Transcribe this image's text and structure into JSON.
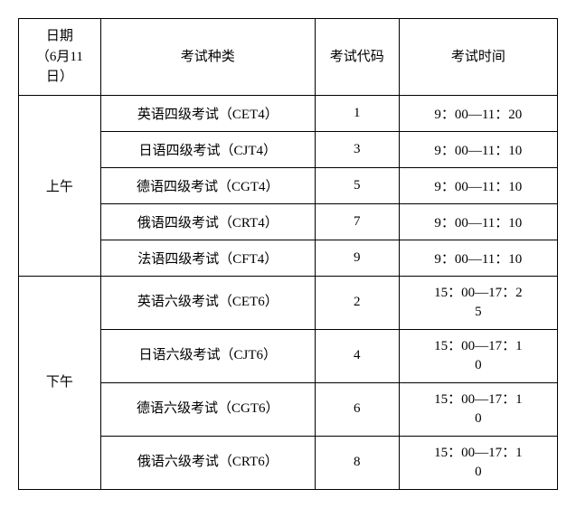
{
  "table": {
    "headers": {
      "date": "日期\n（6月11\n日）",
      "type": "考试种类",
      "code": "考试代码",
      "time": "考试时间"
    },
    "sessions": [
      {
        "period": "上午",
        "rows": [
          {
            "type": "英语四级考试（CET4）",
            "code": "1",
            "time": "9：00—11：20"
          },
          {
            "type": "日语四级考试（CJT4）",
            "code": "3",
            "time": "9：00—11：10"
          },
          {
            "type": "德语四级考试（CGT4）",
            "code": "5",
            "time": "9：00—11：10"
          },
          {
            "type": "俄语四级考试（CRT4）",
            "code": "7",
            "time": "9：00—11：10"
          },
          {
            "type": "法语四级考试（CFT4）",
            "code": "9",
            "time": "9：00—11：10"
          }
        ]
      },
      {
        "period": "下午",
        "rows": [
          {
            "type": "英语六级考试（CET6）",
            "code": "2",
            "time": "15：00—17：2\n5"
          },
          {
            "type": "日语六级考试（CJT6）",
            "code": "4",
            "time": "15：00—17：1\n0"
          },
          {
            "type": "德语六级考试（CGT6）",
            "code": "6",
            "time": "15：00—17：1\n0"
          },
          {
            "type": "俄语六级考试（CRT6）",
            "code": "8",
            "time": "15：00—17：1\n0"
          }
        ]
      }
    ],
    "colors": {
      "border": "#000000",
      "background": "#ffffff",
      "text": "#000000"
    },
    "font_size": 15
  }
}
